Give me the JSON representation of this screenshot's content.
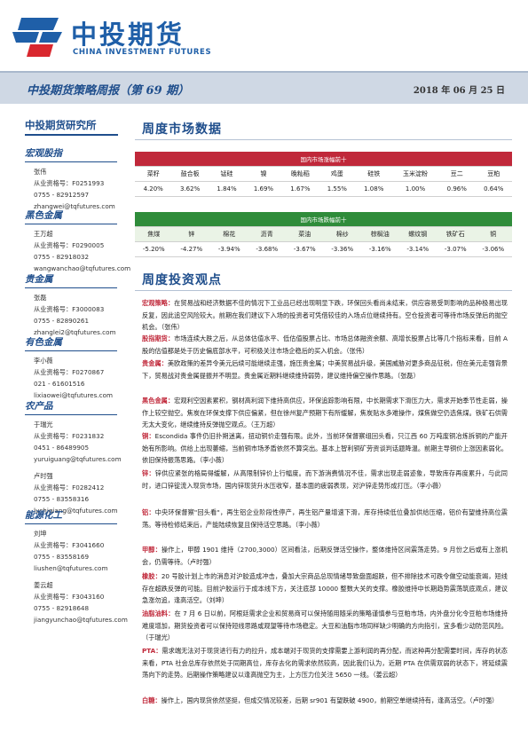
{
  "header": {
    "brand_cn": "中投期货",
    "brand_en": "CHINA INVESTMENT FUTURES",
    "report_title": "中投期货策略周报（第 69 期）",
    "date": "2018 年 06 月 25 日"
  },
  "sidebar": {
    "institute": "中投期货研究所",
    "sections": [
      {
        "title": "宏观股指",
        "people": [
          {
            "name": "张伟",
            "cert": "从业资格号：F0251993",
            "phone": "0755 - 82912597",
            "email": "zhangwei@tqfutures.com"
          }
        ]
      },
      {
        "title": "黑色金属",
        "people": [
          {
            "name": "王万超",
            "cert": "从业资格号：F0290005",
            "phone": "0755 - 82918032",
            "email": "wangwanchao@tqfutures.com"
          }
        ]
      },
      {
        "title": "贵金属",
        "people": [
          {
            "name": "张磊",
            "cert": "从业资格号：F3000083",
            "phone": "0755 - 82890261",
            "email": "zhanglei2@tqfutures.com"
          }
        ]
      },
      {
        "title": "有色金属",
        "people": [
          {
            "name": "李小薇",
            "cert": "从业资格号：F0270867",
            "phone": "021 - 61601516",
            "email": "lixiaowei@tqfutures.com"
          }
        ]
      },
      {
        "title": "农产品",
        "people": [
          {
            "name": "于瑞光",
            "cert": "从业资格号：F0231832",
            "phone": "0451 - 86489905",
            "email": "yuruiguang@tqfutures.com"
          },
          {
            "name": "卢时强",
            "cert": "从业资格号：F0282412",
            "phone": "0755 - 83558316",
            "email": "lushiqiang@tqfutures.com"
          }
        ]
      },
      {
        "title": "能源化工",
        "people": [
          {
            "name": "刘坤",
            "cert": "从业资格号：F3041660",
            "phone": "0755 - 83558169",
            "email": "liushen@tqfutures.com"
          },
          {
            "name": "姜云超",
            "cert": "从业资格号：F3043160",
            "phone": "0755 - 82918648",
            "email": "jiangyunchao@tqfutures.com"
          }
        ]
      }
    ]
  },
  "market": {
    "heading": "周度市场数据",
    "gainers": {
      "caption": "国内市场涨幅前十",
      "names": [
        "菜籽",
        "鼓合板",
        "锰硅",
        "镍",
        "晚籼稻",
        "鸡蛋",
        "硅铁",
        "玉米淀粉",
        "豆二",
        "豆粕"
      ],
      "values": [
        "4.20%",
        "3.62%",
        "1.84%",
        "1.69%",
        "1.67%",
        "1.55%",
        "1.08%",
        "1.00%",
        "0.96%",
        "0.64%"
      ]
    },
    "losers": {
      "caption": "国内市场跌幅前十",
      "names": [
        "焦煤",
        "锌",
        "棉花",
        "沥青",
        "菜油",
        "棉纱",
        "棕榈油",
        "螺纹钢",
        "铁矿石",
        "铜"
      ],
      "values": [
        "-5.20%",
        "-4.27%",
        "-3.94%",
        "-3.68%",
        "-3.67%",
        "-3.36%",
        "-3.16%",
        "-3.14%",
        "-3.07%",
        "-3.06%"
      ]
    }
  },
  "views": {
    "heading": "周度投资观点",
    "items": [
      {
        "label": "宏观策略：",
        "text": "在贸易战和经济数据不佳的情况下工业品已经出现明显下跌，环保回头看尚未结束，供应容易受到影响的品种极易出现反复，因此追空风险较大。前期在我们建议下入场的投资者可凭借较佳的入场点位继续持有。空仓投资者可等待市场反弹后的抛空机会。（张伟）"
      },
      {
        "label": "股指期货：",
        "text": "市场连续大跌之后，从总体估值水平、低估值股票占比、市场总体融资余额、高增长股票占比等几个指标来看，目前 A 股的估值都是处于历史偏底部水平，可积极关注市场企稳后的买入机会。（张伟）"
      },
      {
        "label": "贵金属：",
        "text": "美欧政策的差异令美元后续可能继续走强，施压贵金属；中美贸易战升级，美国威胁对更多商品征税，但在美元走强背景下，贸易战对贵金属提振并不明显。贵金属近期料继续维持弱势，建议维持偏空操作思路。（张磊）"
      },
      {
        "label": "黑色金属：",
        "text": "宏观利空因素累积，钢材高利润下维持高供应，环保追踪影响有限，中长期需求下滑压力大，需求开始季节性走弱，操作上较空抛空。焦炭在环保支撑下供应偏紧，但在徐州复产预期下有所缓解，焦炭贴水多难操作，煤焦做空仍选焦煤。铁矿石供需无太大变化，继续维持反弹抛空观点。（王万超）"
      },
      {
        "label": "铜：",
        "text": "Escondida 事件仍旧扑朔迷离，扭动铜价走强有限。此外，当前环保督察组回头看，只江西 60 万吨废铜冶炼拆铜的产能开始有所影响。供给上出现萎缩，当前铜市场矛盾依然不算突出。基本上智利铜矿劳资谈判话题降温。前期主导铜价上涨因素弱化。依旧保持振荡思路。（李小薇）"
      },
      {
        "label": "锌：",
        "text": "锌供应紧张的格局得缓解，从高限制锌价上行幅度。而下游消费情况不佳，需求出现走弱迹象，导致库存再度累升，与此同时，进口锌锭流入现货市场，国内锌现货升水压收窄，基本面的疲弱表现，对沪锌走势形成打压。（李小薇）"
      },
      {
        "label": "铝：",
        "text": "中央环保督察\"回头看\"，再生铝企业阶段性停产，再生铝产量增速下滑，库存持续低位叠加供给压缩，铝价有望维持高位震荡。等待检修结束后，产能陆续恢复且保持活空思路。（李小薇）"
      },
      {
        "label": "甲醇：",
        "text": "操作上，甲醇 1901 维持（2700,3000）区间看法，后期反弹活空操作，整体维持区间震荡走势。9 月份之后或有上涨机会，仍需等待。（卢时强）"
      },
      {
        "label": "橡胶：",
        "text": "20 号胶计划上市的消息对沪胶造成冲击，叠加大宗商品总现情绪导致盘面超跌，但不排除技术可跌令做空动能衰竭，短线存在超跌反弹的可能。目前沪胶运行于成本线下方，关注底部 10000 整数大关的支撑。橡胶维持中长期趋势震荡筑底观点，建议急涨勿追，逢高活空。（刘坤）"
      },
      {
        "label": "油脂油料：",
        "text": "在 7 月 6 日以前，阿根廷需求企业和贸易商可以保持随用随采的策略谨慎参与豆粕市场，内外盘分化令豆粕市场维持难度增加，期货投资者可以保持短线思路或观望等待市场稳定。大豆和油脂市场同样缺少明确的方向指引，宜多看少动防范风险。（于瑞光）"
      },
      {
        "label": "PTA：",
        "text": "需求端无法对于现货进行有力的拉升，成本端对于现货的支撑需要上游利润的再分配，而这种再分配需要时间，库存的状态来看，PTA 社会总库存依然处于同期高位，库存去化的需求依然较高，因此我们认为，近期 PTA 在供需双弱的状态下，将延续震荡向下的走势。后期操作策略建议以逢高抛空为主，上方压力位关注 5650 一线。（姜云超）"
      },
      {
        "label": "白糖：",
        "text": "操作上，国内现货依然坚挺，但成交情况较差，后期 sr901 有望跌破 4900，前期空单继续持有，逢高活空。（卢时强）"
      }
    ]
  }
}
